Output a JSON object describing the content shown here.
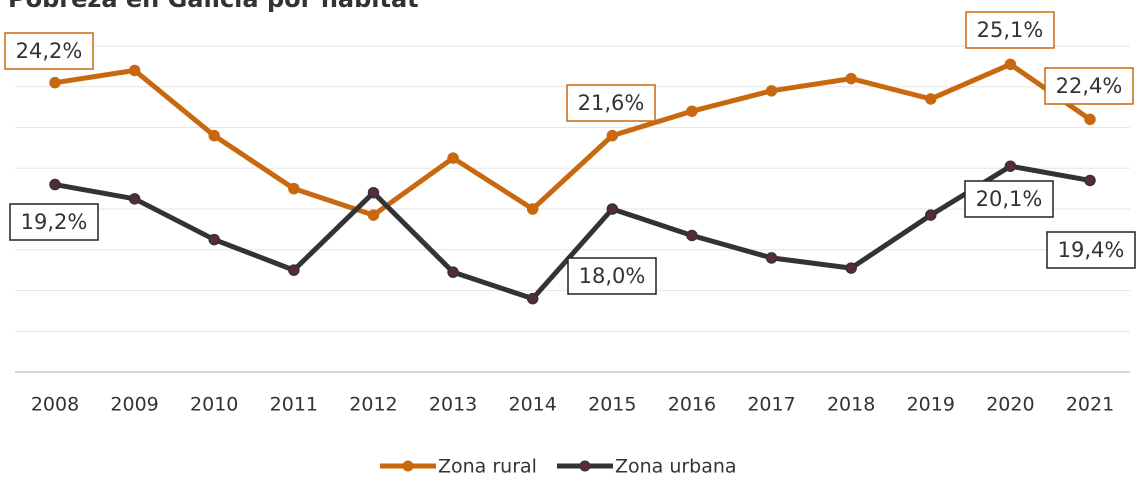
{
  "chart_data": {
    "type": "line",
    "title": "Pobreza en Galicia por hábitat",
    "categories": [
      "2008",
      "2009",
      "2010",
      "2011",
      "2012",
      "2013",
      "2014",
      "2015",
      "2016",
      "2017",
      "2018",
      "2019",
      "2020",
      "2021"
    ],
    "series": [
      {
        "name": "Zona rural",
        "color": "#c8690f",
        "values": [
          24.2,
          24.8,
          21.6,
          19.0,
          17.7,
          20.5,
          18.0,
          21.6,
          22.8,
          23.8,
          24.4,
          23.4,
          25.1,
          22.4
        ],
        "value_labels": [
          "24,2%",
          null,
          null,
          null,
          null,
          null,
          null,
          "21,6%",
          null,
          null,
          null,
          null,
          "25,1%",
          "22,4%"
        ]
      },
      {
        "name": "Zona urbana",
        "color": "#333333",
        "values": [
          19.2,
          18.5,
          16.5,
          15.0,
          18.8,
          14.9,
          13.6,
          18.0,
          16.7,
          15.6,
          15.1,
          17.7,
          20.1,
          19.4
        ],
        "value_labels": [
          "19,2%",
          null,
          null,
          null,
          null,
          null,
          null,
          "18,0%",
          null,
          null,
          null,
          null,
          "20,1%",
          "19,4%"
        ]
      }
    ],
    "ylim": [
      10,
      26
    ],
    "yticks": [
      10,
      12,
      14,
      16,
      18,
      20,
      22,
      24,
      26
    ],
    "grid": true,
    "legend": "bottom"
  }
}
